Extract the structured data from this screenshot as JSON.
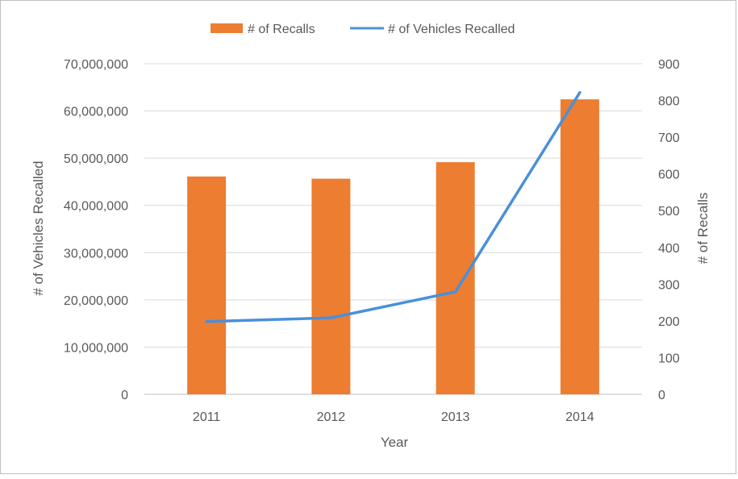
{
  "chart_data": {
    "type": "bar",
    "title": "",
    "categories": [
      "2011",
      "2012",
      "2013",
      "2014"
    ],
    "xlabel": "Year",
    "series": [
      {
        "name": "# of Recalls",
        "type": "bar",
        "axis": "right",
        "color": "#ED7D31",
        "values": [
          593,
          587,
          632,
          803
        ]
      },
      {
        "name": "# of Vehicles Recalled",
        "type": "line",
        "axis": "left",
        "color": "#4A90D9",
        "values": [
          15400000,
          16200000,
          21700000,
          63900000
        ]
      }
    ],
    "y_left": {
      "label": "# of Vehicles Recalled",
      "ylim": [
        0,
        70000000
      ],
      "ticks": [
        0,
        10000000,
        20000000,
        30000000,
        40000000,
        50000000,
        60000000,
        70000000
      ],
      "tick_labels": [
        "0",
        "10,000,000",
        "20,000,000",
        "30,000,000",
        "40,000,000",
        "50,000,000",
        "60,000,000",
        "70,000,000"
      ]
    },
    "y_right": {
      "label": "# of Recalls",
      "ylim": [
        0,
        900
      ],
      "ticks": [
        0,
        100,
        200,
        300,
        400,
        500,
        600,
        700,
        800,
        900
      ],
      "tick_labels": [
        "0",
        "100",
        "200",
        "300",
        "400",
        "500",
        "600",
        "700",
        "800",
        "900"
      ]
    },
    "legend_position": "top-center",
    "grid": true
  }
}
